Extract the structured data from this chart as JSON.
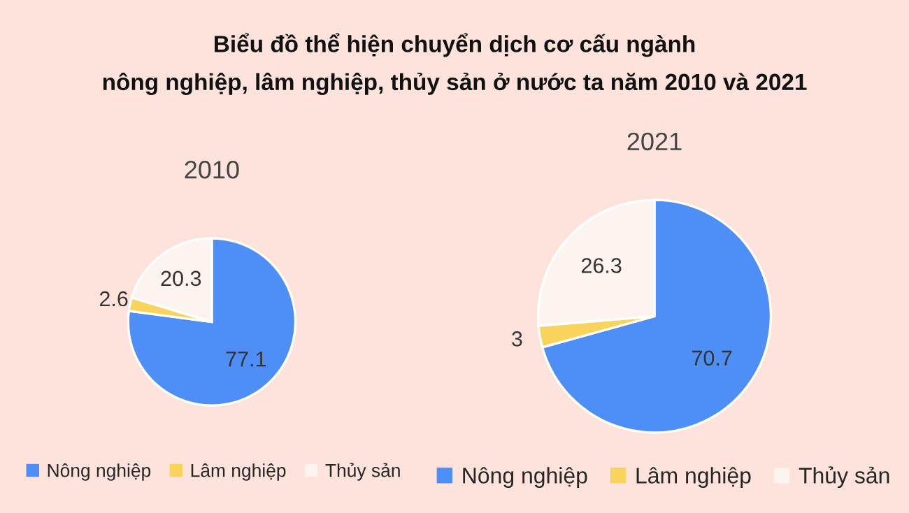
{
  "chart_data": [
    {
      "type": "pie",
      "title": "Biểu đồ thể hiện chuyển dịch cơ cấu ngành\nnông nghiệp, lâm nghiệp, thủy sản ở nước ta năm 2010 và 2021",
      "subtitle": "2010",
      "categories": [
        "Nông nghiệp",
        "Lâm nghiệp",
        "Thủy sản"
      ],
      "values": [
        77.1,
        2.6,
        20.3
      ],
      "colors": [
        "#4e8ef7",
        "#f9d45c",
        "#fdf3ef"
      ],
      "data_labels": true,
      "legend": "bottom"
    },
    {
      "type": "pie",
      "subtitle": "2021",
      "categories": [
        "Nông nghiệp",
        "Lâm nghiệp",
        "Thủy sản"
      ],
      "values": [
        70.7,
        3,
        26.3
      ],
      "colors": [
        "#4e8ef7",
        "#f9d45c",
        "#fdf3ef"
      ],
      "data_labels": true,
      "legend": "bottom"
    }
  ]
}
